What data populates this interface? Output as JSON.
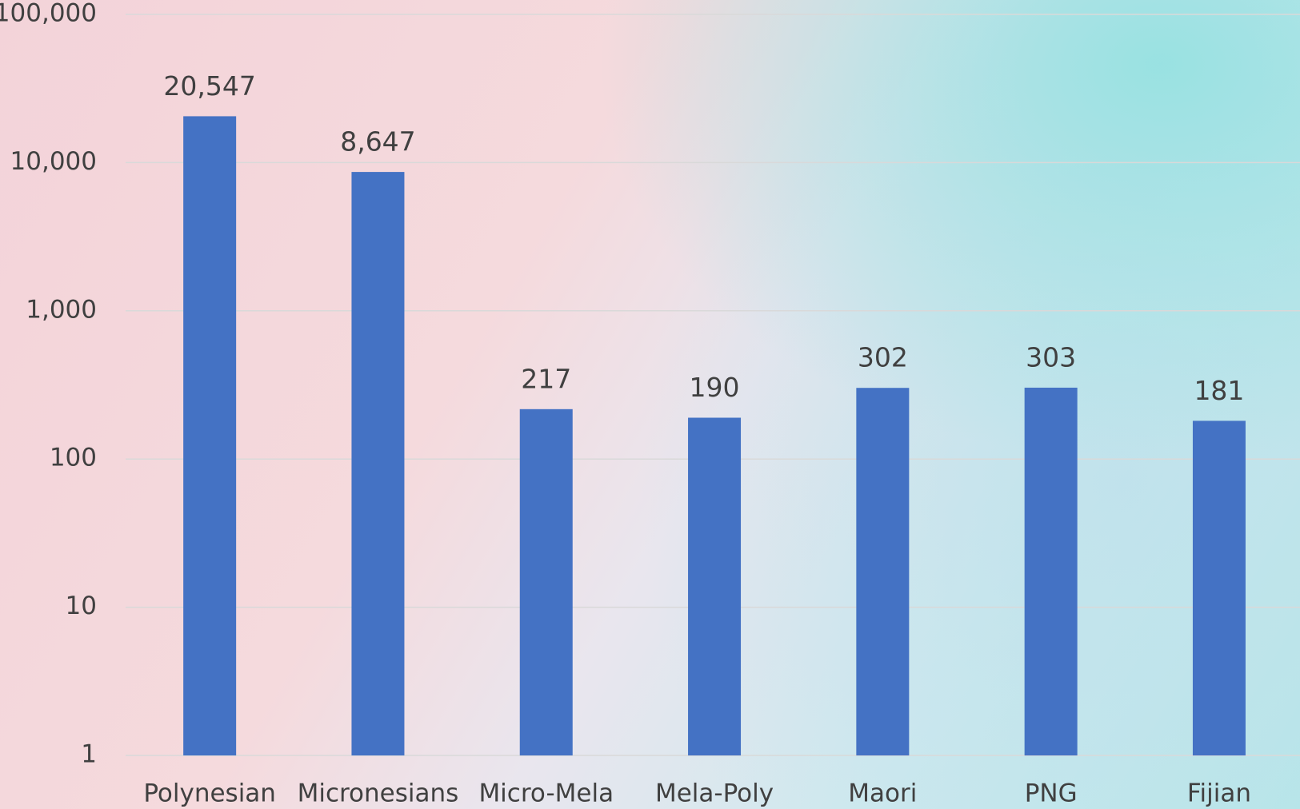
{
  "chart_data": {
    "type": "bar",
    "log_scale": true,
    "grid": true,
    "color": "#4472c4",
    "categories": [
      "Polynesian",
      "Micronesians",
      "Micro-Mela",
      "Mela-Poly",
      "Maori",
      "PNG",
      "Fijian"
    ],
    "values": [
      20547,
      8647,
      217,
      190,
      302,
      303,
      181
    ],
    "value_labels": [
      "20,547",
      "8,647",
      "217",
      "190",
      "302",
      "303",
      "181"
    ],
    "ylim": [
      1,
      100000
    ],
    "yticks": [
      1,
      10,
      100,
      {
        "value": 1000,
        "label": "1,000"
      },
      {
        "value": 10000,
        "label": "10,000"
      },
      {
        "value": 100000,
        "label": "100,000"
      }
    ]
  }
}
